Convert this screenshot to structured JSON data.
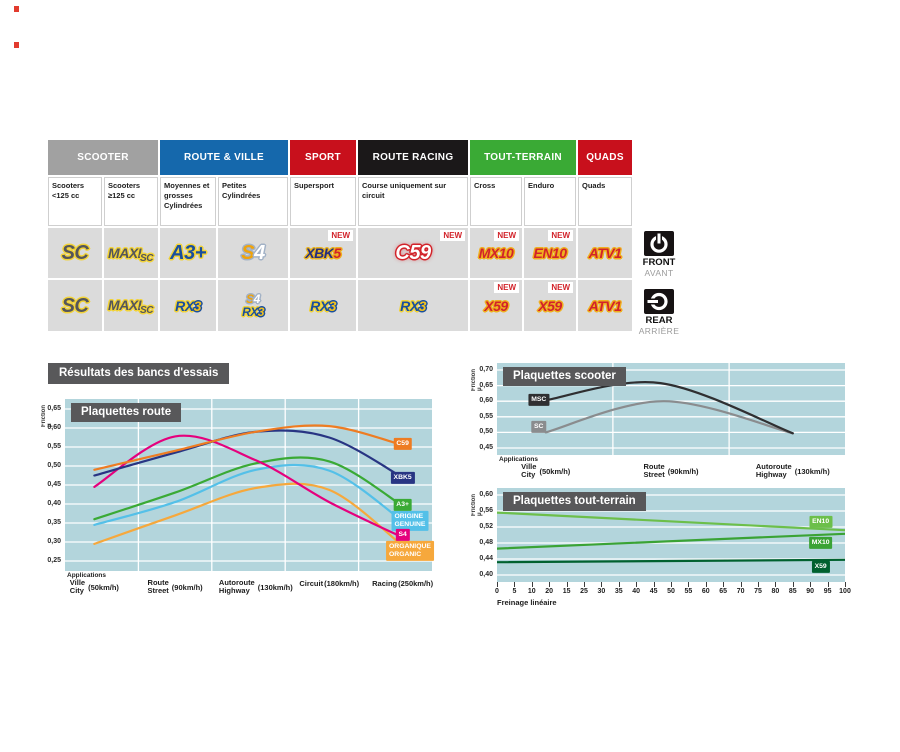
{
  "page": {
    "section_title": "Résultats des bancs d'essais"
  },
  "table": {
    "new_label": "NEW",
    "groups": [
      {
        "label": "SCOOTER",
        "color": "#a1a1a1",
        "span": 2
      },
      {
        "label": "ROUTE & VILLE",
        "color": "#1568ac",
        "span": 2
      },
      {
        "label": "SPORT",
        "color": "#c8101c",
        "span": 1
      },
      {
        "label": "ROUTE RACING",
        "color": "#1b1819",
        "span": 1
      },
      {
        "label": "TOUT-TERRAIN",
        "color": "#3aaa35",
        "span": 2
      },
      {
        "label": "QUADS",
        "color": "#c8101c",
        "span": 1
      }
    ],
    "subheaders": [
      "Scooters <125 cc",
      "Scooters ≥125 cc",
      "Moyennes et grosses Cylindrées",
      "Petites Cylindrées",
      "Supersport",
      "Course uniquement sur circuit",
      "Cross",
      "Enduro",
      "Quads"
    ],
    "front_row": [
      {
        "lines": [
          [
            {
              "t": "SC",
              "s": "gray-yellow sz-lg"
            }
          ]
        ]
      },
      {
        "lines": [
          [
            {
              "t": "MAXI",
              "s": "gray-yellow sz-md"
            },
            {
              "t": "SC",
              "s": "gray-yellow sz-xs sub"
            }
          ]
        ]
      },
      {
        "lines": [
          [
            {
              "t": "A3+",
              "s": "blue-yellow sz-lg"
            }
          ]
        ]
      },
      {
        "lines": [
          [
            {
              "t": "S",
              "s": "gold-steel sz-lg"
            },
            {
              "t": "4",
              "s": "white-steel sz-lg"
            }
          ]
        ]
      },
      {
        "new": true,
        "lines": [
          [
            {
              "t": "XBK",
              "s": "navy-gold sz-md"
            },
            {
              "t": "5",
              "s": "red-gold sz-md"
            }
          ]
        ]
      },
      {
        "new": true,
        "lines": [
          [
            {
              "t": "C59",
              "s": "white-red sz-lg"
            }
          ]
        ]
      },
      {
        "new": true,
        "lines": [
          [
            {
              "t": "MX10",
              "s": "red-gold sz-md"
            }
          ]
        ]
      },
      {
        "new": true,
        "lines": [
          [
            {
              "t": "EN10",
              "s": "red-gold sz-md"
            }
          ]
        ]
      },
      {
        "lines": [
          [
            {
              "t": "ATV1",
              "s": "red-gold sz-md"
            }
          ]
        ]
      }
    ],
    "rear_row": [
      {
        "lines": [
          [
            {
              "t": "SC",
              "s": "gray-yellow sz-lg"
            }
          ]
        ]
      },
      {
        "lines": [
          [
            {
              "t": "MAXI",
              "s": "gray-yellow sz-md"
            },
            {
              "t": "SC",
              "s": "gray-yellow sz-xs sub"
            }
          ]
        ]
      },
      {
        "lines": [
          [
            {
              "t": "RX",
              "s": "blue-yellow sz-md"
            },
            {
              "t": "3",
              "s": "gold-blue sz-md"
            }
          ]
        ]
      },
      {
        "lines": [
          [
            {
              "t": "S",
              "s": "gold-steel sz-sm"
            },
            {
              "t": "4",
              "s": "white-steel sz-sm"
            }
          ],
          [
            {
              "t": "RX",
              "s": "blue-yellow sz-sm"
            },
            {
              "t": "3",
              "s": "gold-blue sz-sm"
            }
          ]
        ]
      },
      {
        "lines": [
          [
            {
              "t": "RX",
              "s": "blue-yellow sz-md"
            },
            {
              "t": "3",
              "s": "gold-blue sz-md"
            }
          ]
        ]
      },
      {
        "lines": [
          [
            {
              "t": "RX",
              "s": "blue-yellow sz-md"
            },
            {
              "t": "3",
              "s": "gold-blue sz-md"
            }
          ]
        ]
      },
      {
        "new": true,
        "lines": [
          [
            {
              "t": "X59",
              "s": "red-gold sz-md"
            }
          ]
        ]
      },
      {
        "new": true,
        "lines": [
          [
            {
              "t": "X59",
              "s": "red-gold sz-md"
            }
          ]
        ]
      },
      {
        "lines": [
          [
            {
              "t": "ATV1",
              "s": "red-gold sz-md"
            }
          ]
        ]
      }
    ],
    "position_labels": {
      "front": "FRONT",
      "front_sub": "AVANT",
      "rear": "REAR",
      "rear_sub": "ARRIÈRE"
    }
  },
  "chart_data": {
    "route": {
      "type": "line",
      "title": "Plaquettes route",
      "ylabel": "Friction μ",
      "ymin": 0.25,
      "ymax": 0.65,
      "yticks": [
        "0,65",
        "0,60",
        "0,55",
        "0,50",
        "0,45",
        "0,40",
        "0,35",
        "0,30",
        "0,25"
      ],
      "x_header": "Applications",
      "stations": [
        {
          "fr": "Ville",
          "en": "City",
          "speed": "(50km/h)",
          "x": 0.08
        },
        {
          "fr": "Route",
          "en": "Street",
          "speed": "(90km/h)",
          "x": 0.3
        },
        {
          "fr": "Autoroute",
          "en": "Highway",
          "speed": "(130km/h)",
          "x": 0.52
        },
        {
          "fr": "Circuit",
          "en": "",
          "speed": "(180km/h)",
          "x": 0.72
        },
        {
          "fr": "Racing",
          "en": "",
          "speed": "(250km/h)",
          "x": 0.92
        }
      ],
      "vgrid": [
        0.2,
        0.4,
        0.6,
        0.8
      ],
      "series": [
        {
          "name": "ORGANIQUE",
          "label": [
            "ORGANIQUE",
            "ORGANIC"
          ],
          "color": "#f6a83c",
          "x": [
            0.08,
            0.3,
            0.52,
            0.72,
            0.92
          ],
          "values": [
            0.295,
            0.37,
            0.442,
            0.437,
            0.29
          ],
          "label_at": 0.276,
          "label_x": 0.94
        },
        {
          "name": "ORIGINE",
          "label": [
            "ORIGINE",
            "GENUINE"
          ],
          "color": "#54c0e8",
          "x": [
            0.08,
            0.3,
            0.52,
            0.72,
            0.92
          ],
          "values": [
            0.345,
            0.405,
            0.49,
            0.488,
            0.355
          ],
          "label_at": 0.356,
          "label_x": 0.94
        },
        {
          "name": "A3+",
          "label": [
            "A3+"
          ],
          "color": "#3aaa35",
          "x": [
            0.08,
            0.3,
            0.52,
            0.72,
            0.92
          ],
          "values": [
            0.36,
            0.43,
            0.507,
            0.512,
            0.395
          ],
          "label_at": 0.397,
          "label_x": 0.92
        },
        {
          "name": "S4",
          "label": [
            "S4"
          ],
          "color": "#e5007d",
          "x": [
            0.08,
            0.3,
            0.52,
            0.72,
            0.92
          ],
          "values": [
            0.445,
            0.578,
            0.515,
            0.405,
            0.312
          ],
          "label_at": 0.318,
          "label_x": 0.92
        },
        {
          "name": "XBK5",
          "label": [
            "XBK5"
          ],
          "color": "#283583",
          "x": [
            0.08,
            0.3,
            0.52,
            0.72,
            0.92
          ],
          "values": [
            0.475,
            0.535,
            0.59,
            0.575,
            0.47
          ],
          "label_at": 0.468,
          "label_x": 0.92
        },
        {
          "name": "C59",
          "label": [
            "C59"
          ],
          "color": "#ee7c22",
          "x": [
            0.08,
            0.3,
            0.52,
            0.72,
            0.92
          ],
          "values": [
            0.49,
            0.54,
            0.59,
            0.605,
            0.555
          ],
          "label_at": 0.558,
          "label_x": 0.92
        }
      ]
    },
    "scooter": {
      "type": "line",
      "title": "Plaquettes scooter",
      "ylabel": "Friction μ",
      "ymin": 0.45,
      "ymax": 0.7,
      "yticks": [
        "0,70",
        "0,65",
        "0,60",
        "0,55",
        "0,50",
        "0,45"
      ],
      "x_header": "Applications",
      "stations": [
        {
          "fr": "Ville",
          "en": "City",
          "speed": "(50km/h)",
          "x": 0.14
        },
        {
          "fr": "Route",
          "en": "Street",
          "speed": "(90km/h)",
          "x": 0.5
        },
        {
          "fr": "Autoroute",
          "en": "Highway",
          "speed": "(130km/h)",
          "x": 0.85
        }
      ],
      "vgrid": [
        0.333,
        0.667
      ],
      "series": [
        {
          "name": "SC",
          "label": [
            "SC"
          ],
          "color": "#8a8c8e",
          "x": [
            0.14,
            0.48,
            0.85
          ],
          "values": [
            0.5,
            0.6,
            0.497
          ],
          "label_at": 0.518,
          "label_x": 0.12
        },
        {
          "name": "MSC",
          "label": [
            "MSC"
          ],
          "color": "#2f2f31",
          "x": [
            0.14,
            0.47,
            0.85
          ],
          "values": [
            0.603,
            0.658,
            0.497
          ],
          "label_at": 0.605,
          "label_x": 0.12
        }
      ]
    },
    "tt": {
      "type": "line",
      "title": "Plaquettes tout-terrain",
      "ylabel": "Friction μ",
      "ymin": 0.4,
      "ymax": 0.6,
      "yticks": [
        "0,60",
        "0,56",
        "0,52",
        "0,48",
        "0,44",
        "0,40"
      ],
      "xticks": [
        "0",
        "5",
        "10",
        "20",
        "15",
        "25",
        "30",
        "35",
        "40",
        "45",
        "50",
        "55",
        "60",
        "65",
        "70",
        "75",
        "80",
        "85",
        "90",
        "95",
        "100"
      ],
      "xlabel": "Freinage linéaire",
      "series": [
        {
          "name": "EN10",
          "label": [
            "EN10"
          ],
          "color": "#6cbf4a",
          "x": [
            0.0,
            1.0
          ],
          "values": [
            0.556,
            0.512
          ],
          "label_at": 0.532,
          "label_x": 0.93
        },
        {
          "name": "MX10",
          "label": [
            "MX10"
          ],
          "color": "#3aa335",
          "x": [
            0.0,
            1.0
          ],
          "values": [
            0.466,
            0.503
          ],
          "label_at": 0.481,
          "label_x": 0.93
        },
        {
          "name": "X59",
          "label": [
            "X59"
          ],
          "color": "#00612f",
          "x": [
            0.0,
            1.0
          ],
          "values": [
            0.432,
            0.438
          ],
          "label_at": 0.421,
          "label_x": 0.93
        }
      ]
    }
  }
}
